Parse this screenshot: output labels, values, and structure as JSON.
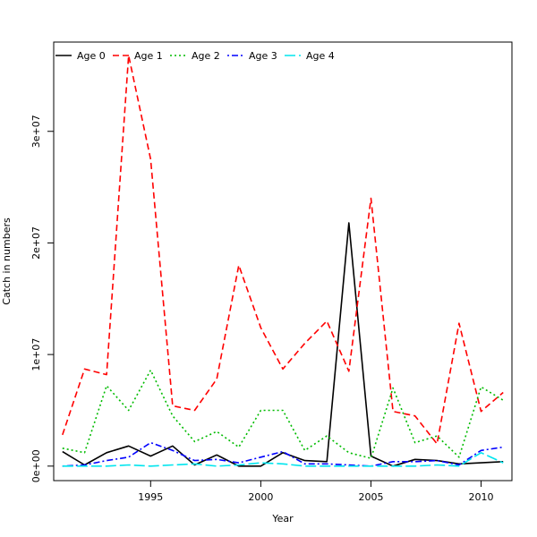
{
  "chart_data": {
    "type": "line",
    "title": "",
    "xlabel": "Year",
    "ylabel": "Catch in numbers",
    "xlim": [
      1990.6,
      2011.4
    ],
    "ylim": [
      -1300000,
      38000000
    ],
    "x_ticks": [
      1995,
      2000,
      2005,
      2010
    ],
    "x_tick_labels": [
      "1995",
      "2000",
      "2005",
      "2010"
    ],
    "y_ticks": [
      0,
      10000000,
      20000000,
      30000000
    ],
    "y_tick_labels": [
      "0e+00",
      "1e+07",
      "2e+07",
      "3e+07"
    ],
    "grid": false,
    "legend_position": "top-left",
    "x": [
      1991,
      1992,
      1993,
      1994,
      1995,
      1996,
      1997,
      1998,
      1999,
      2000,
      2001,
      2002,
      2003,
      2004,
      2005,
      2006,
      2007,
      2008,
      2009,
      2010,
      2011
    ],
    "series": [
      {
        "name": "Age 0",
        "color": "#000000",
        "dash": "solid",
        "values": [
          1300000,
          100000,
          1200000,
          1800000,
          900000,
          1800000,
          100000,
          1000000,
          0,
          0,
          1200000,
          500000,
          400000,
          21800000,
          900000,
          0,
          600000,
          500000,
          200000,
          300000,
          400000
        ]
      },
      {
        "name": "Age 1",
        "color": "#ff0000",
        "dash": "dashed",
        "values": [
          2800000,
          8700000,
          8200000,
          36800000,
          27500000,
          5400000,
          5000000,
          7800000,
          18000000,
          12400000,
          8700000,
          11000000,
          13000000,
          8500000,
          24000000,
          4900000,
          4500000,
          2000000,
          12800000,
          4900000,
          6600000
        ]
      },
      {
        "name": "Age 2",
        "color": "#00bb00",
        "dash": "dotted",
        "values": [
          1600000,
          1200000,
          7200000,
          5000000,
          8600000,
          4500000,
          2200000,
          3100000,
          1700000,
          5000000,
          5000000,
          1400000,
          2700000,
          1200000,
          700000,
          7000000,
          2100000,
          2700000,
          800000,
          7100000,
          5900000
        ]
      },
      {
        "name": "Age 3",
        "color": "#0000ff",
        "dash": "dotdash",
        "values": [
          0,
          100000,
          500000,
          800000,
          2100000,
          1400000,
          500000,
          600000,
          300000,
          800000,
          1300000,
          200000,
          200000,
          100000,
          0,
          400000,
          400000,
          500000,
          100000,
          1400000,
          1700000
        ]
      },
      {
        "name": "Age 4",
        "color": "#00e5ee",
        "dash": "longdash",
        "values": [
          0,
          0,
          0,
          100000,
          0,
          100000,
          200000,
          0,
          100000,
          300000,
          200000,
          0,
          0,
          0,
          0,
          0,
          0,
          100000,
          0,
          1200000,
          300000
        ]
      }
    ]
  }
}
